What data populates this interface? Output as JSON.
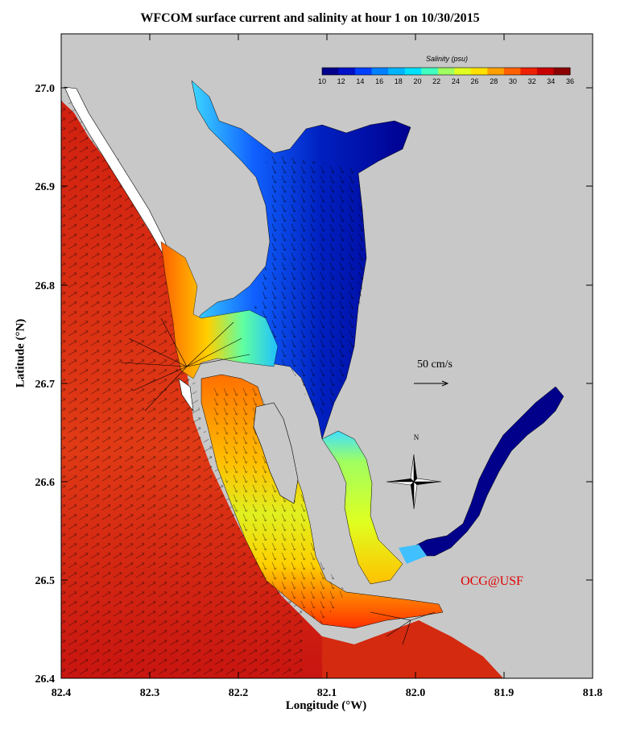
{
  "title": "WFCOM surface current and salinity at hour 1 on 10/30/2015",
  "x_axis": {
    "label": "Longitude (°W)",
    "ticks": [
      "82.4",
      "82.3",
      "82.2",
      "82.1",
      "82.0",
      "81.9",
      "81.8"
    ],
    "range": [
      82.4,
      81.8
    ]
  },
  "y_axis": {
    "label": "Latitude (°N)",
    "ticks": [
      "26.4",
      "26.5",
      "26.6",
      "26.7",
      "26.8",
      "26.9",
      "27.0"
    ],
    "range": [
      26.4,
      27.06
    ]
  },
  "colorbar": {
    "label": "Salinity (psu)",
    "ticks": [
      "10",
      "12",
      "14",
      "16",
      "18",
      "20",
      "22",
      "24",
      "26",
      "28",
      "30",
      "32",
      "34",
      "36"
    ],
    "colors": [
      "#00008b",
      "#0010c8",
      "#0040ff",
      "#0080ff",
      "#00b4ff",
      "#00e0ff",
      "#40ffc0",
      "#a0ff60",
      "#e0ff20",
      "#ffe000",
      "#ffa000",
      "#ff6000",
      "#ee2000",
      "#c80000",
      "#8b0000"
    ]
  },
  "scale_arrow": {
    "label": "50 cm/s"
  },
  "compass": {
    "north_label": "N"
  },
  "credit": "OCG@USF",
  "colors": {
    "land": "#c8c8c8",
    "gulf": "#d42a10",
    "credit": "#e00000"
  }
}
